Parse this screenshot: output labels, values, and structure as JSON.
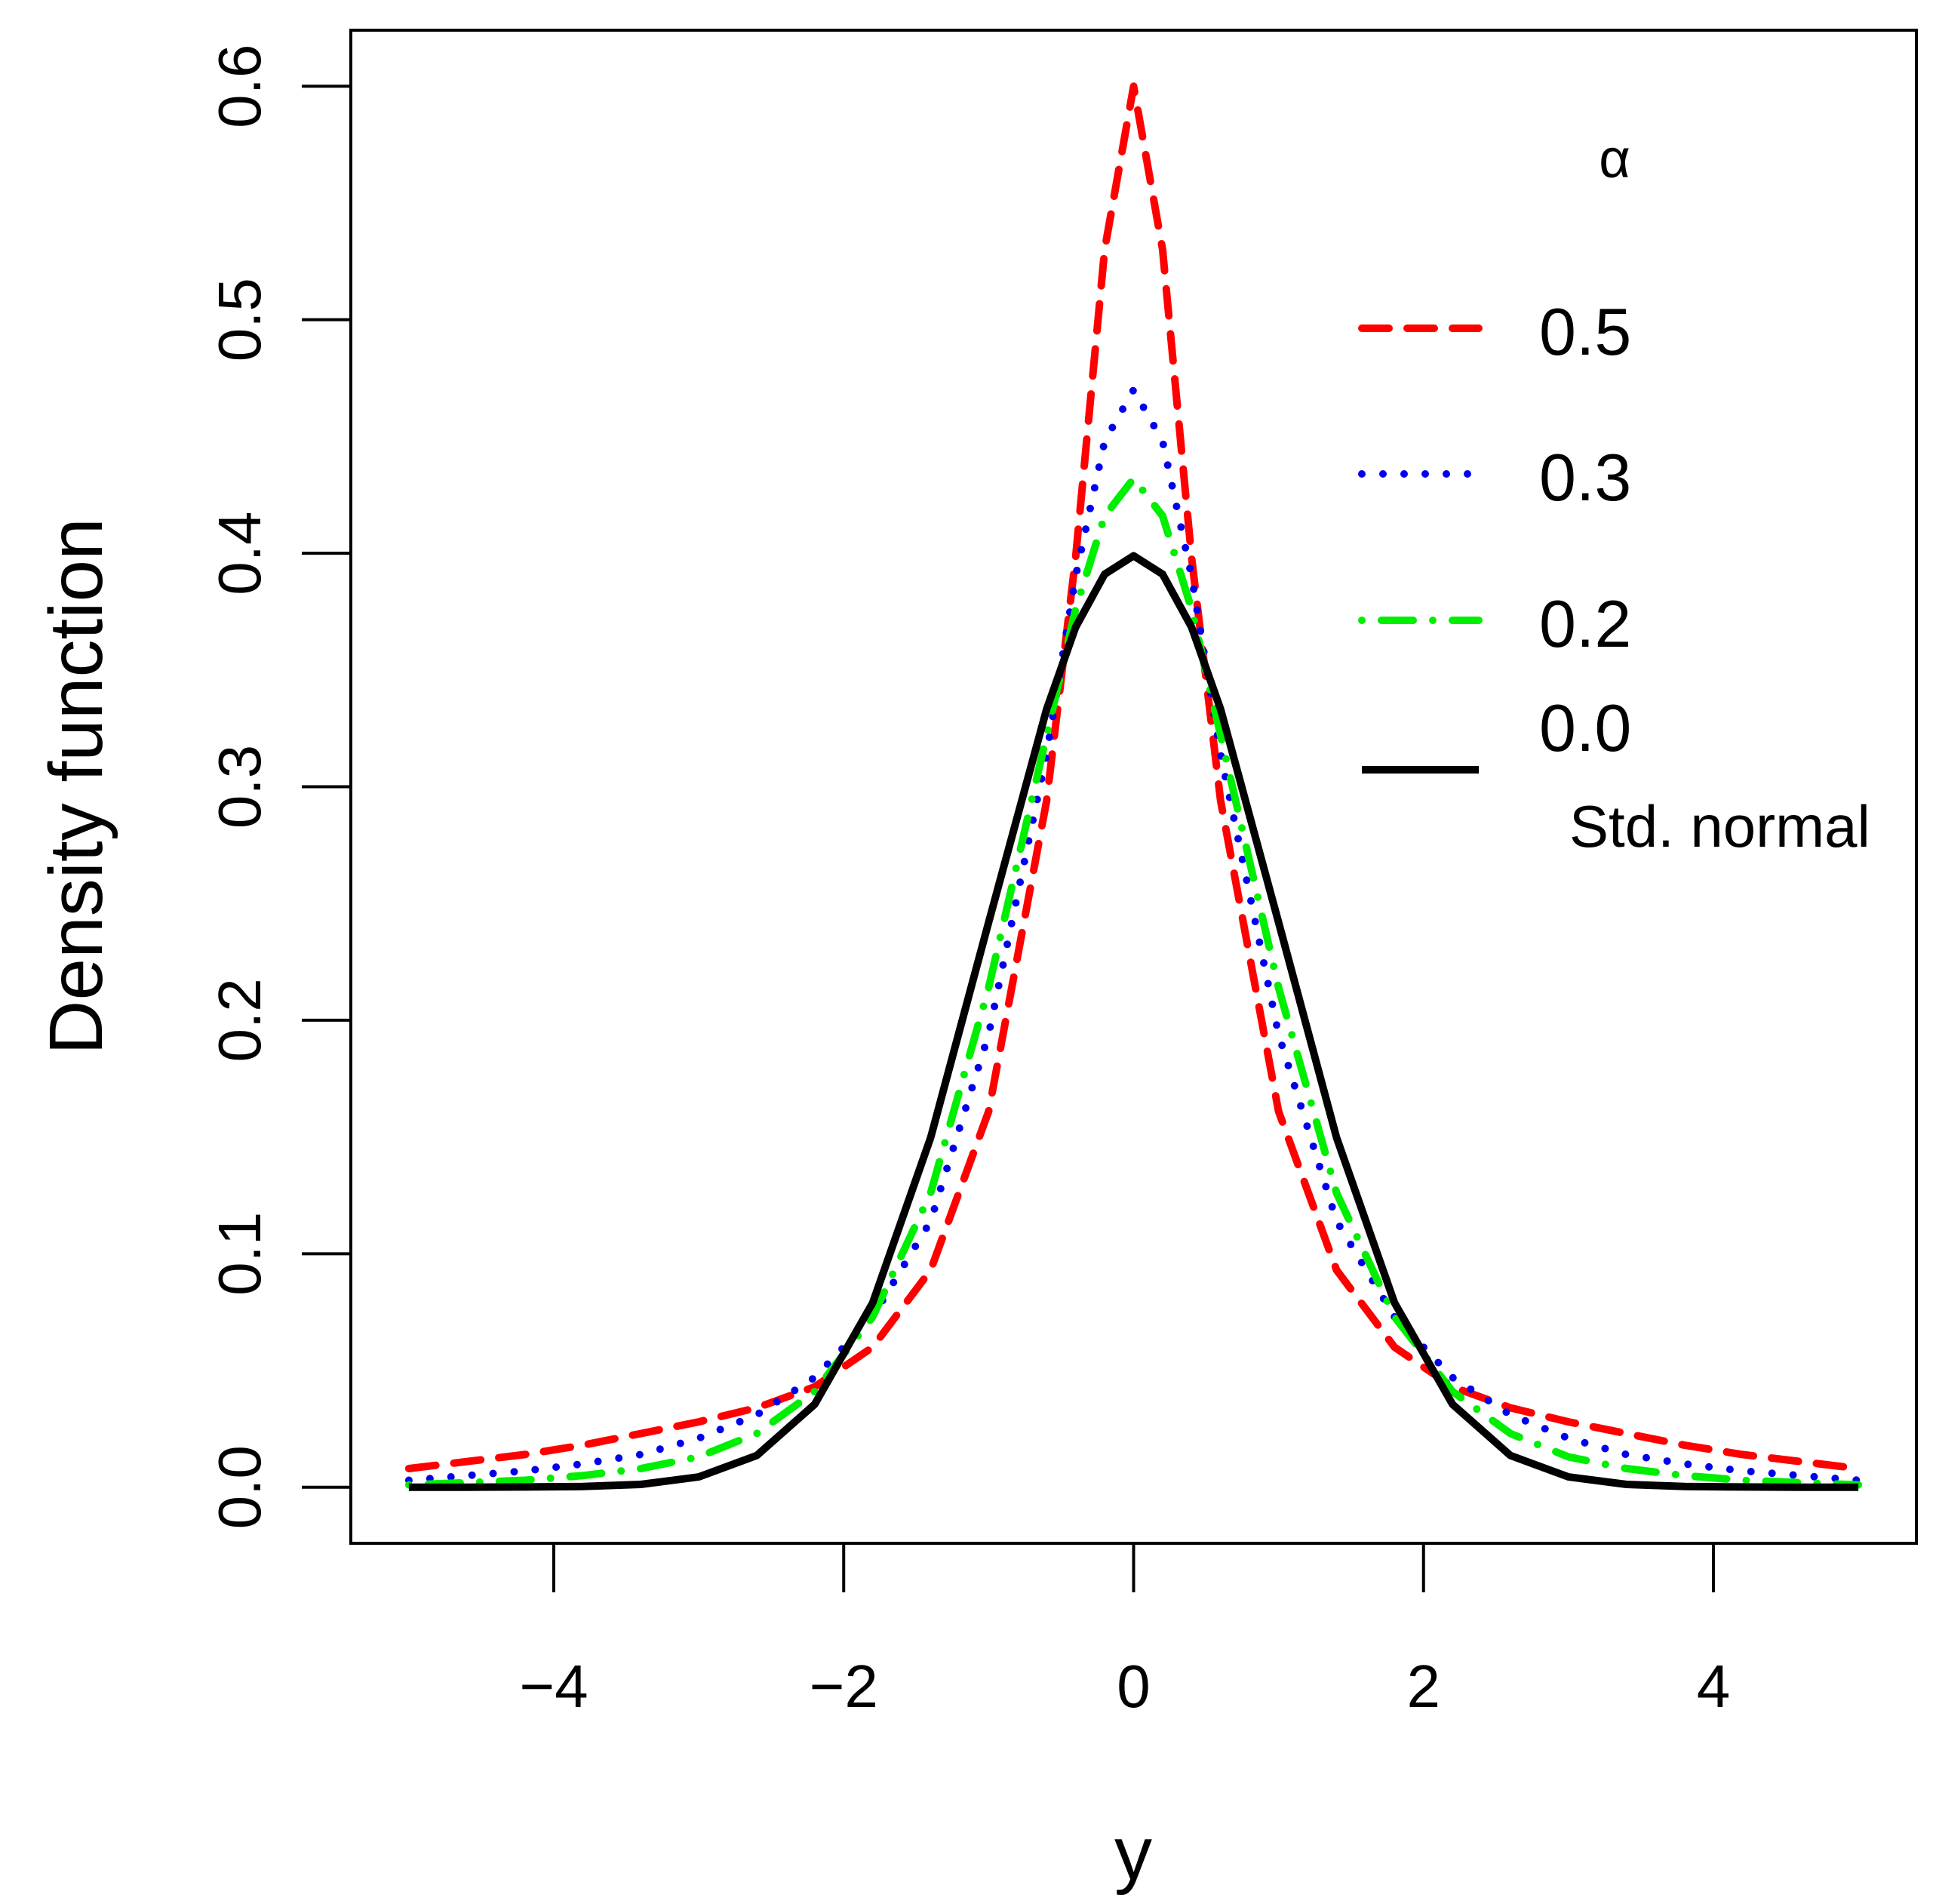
{
  "chart_data": {
    "type": "line",
    "title": "",
    "xlabel": "y",
    "ylabel": "Density function",
    "xlim": [
      -5.4,
      5.4
    ],
    "ylim": [
      -0.024,
      0.624
    ],
    "xticks": [
      -4,
      -2,
      0,
      2,
      4
    ],
    "xtick_labels": [
      "−4",
      "−2",
      "0",
      "2",
      "4"
    ],
    "yticks": [
      0.0,
      0.1,
      0.2,
      0.3,
      0.4,
      0.5,
      0.6
    ],
    "ytick_labels": [
      "0.0",
      "0.1",
      "0.2",
      "0.3",
      "0.4",
      "0.5",
      "0.6"
    ],
    "grid": false,
    "legend": {
      "title": "α",
      "placement": "top-right",
      "std_label": "Std. normal"
    },
    "x": [
      -5.0,
      -4.6,
      -4.2,
      -3.8,
      -3.4,
      -3.0,
      -2.6,
      -2.2,
      -1.8,
      -1.4,
      -1.0,
      -0.6,
      -0.4,
      -0.2,
      0.0,
      0.2,
      0.4,
      0.6,
      1.0,
      1.4,
      1.8,
      2.2,
      2.6,
      3.0,
      3.4,
      3.8,
      4.2,
      4.6,
      5.0
    ],
    "series": [
      {
        "name": "0.5",
        "color": "#ff0000",
        "dash": "dashed",
        "values": [
          0.008,
          0.011,
          0.014,
          0.018,
          0.023,
          0.028,
          0.034,
          0.043,
          0.06,
          0.093,
          0.161,
          0.294,
          0.398,
          0.53,
          0.6,
          0.53,
          0.398,
          0.294,
          0.161,
          0.093,
          0.06,
          0.043,
          0.034,
          0.028,
          0.023,
          0.018,
          0.014,
          0.011,
          0.008
        ]
      },
      {
        "name": "0.3",
        "color": "#0000ee",
        "dash": "dotted",
        "values": [
          0.003,
          0.005,
          0.007,
          0.01,
          0.014,
          0.021,
          0.031,
          0.047,
          0.073,
          0.114,
          0.194,
          0.314,
          0.39,
          0.448,
          0.47,
          0.448,
          0.39,
          0.314,
          0.194,
          0.114,
          0.073,
          0.047,
          0.031,
          0.021,
          0.014,
          0.01,
          0.007,
          0.005,
          0.003
        ]
      },
      {
        "name": "0.2",
        "color": "#00ee00",
        "dash": "dotdash",
        "values": [
          0.001,
          0.002,
          0.003,
          0.005,
          0.008,
          0.013,
          0.023,
          0.041,
          0.073,
          0.126,
          0.214,
          0.322,
          0.376,
          0.416,
          0.432,
          0.416,
          0.376,
          0.322,
          0.214,
          0.126,
          0.073,
          0.041,
          0.023,
          0.013,
          0.008,
          0.005,
          0.003,
          0.002,
          0.001
        ]
      },
      {
        "name": "0.0",
        "color": "#000000",
        "dash": "solid",
        "values": [
          0.0,
          0.0,
          0.0001,
          0.0003,
          0.0012,
          0.0044,
          0.0136,
          0.0355,
          0.079,
          0.1497,
          0.242,
          0.3332,
          0.3683,
          0.391,
          0.3989,
          0.391,
          0.3683,
          0.3332,
          0.242,
          0.1497,
          0.079,
          0.0355,
          0.0136,
          0.0044,
          0.0012,
          0.0003,
          0.0001,
          0.0,
          0.0
        ]
      }
    ]
  }
}
